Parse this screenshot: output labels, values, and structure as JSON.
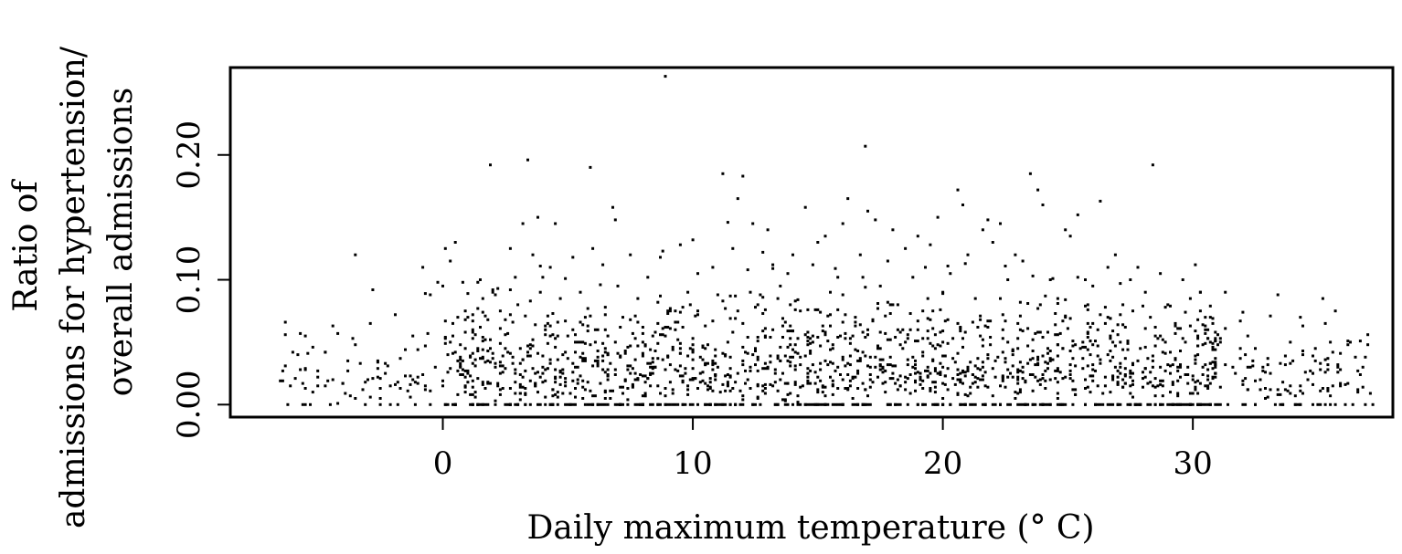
{
  "chart_data": {
    "type": "scatter",
    "title": "",
    "xlabel": "Daily maximum temperature (° C)",
    "ylabel_lines": [
      "Ratio of",
      "admissions for hypertension/",
      "overall admissions"
    ],
    "xlim": [
      -8.5,
      38
    ],
    "ylim": [
      -0.01,
      0.27
    ],
    "x_ticks": [
      0,
      10,
      20,
      30
    ],
    "x_tick_labels": [
      "0",
      "10",
      "20",
      "30"
    ],
    "y_ticks": [
      0.0,
      0.1,
      0.2
    ],
    "y_tick_labels": [
      "0.00",
      "0.10",
      "0.20"
    ],
    "grid": false,
    "legend": "none",
    "point_color": "#000000",
    "series": [
      {
        "points": [
          [
            -6.5,
            0.019
          ],
          [
            -5.5,
            0.028
          ],
          [
            -5.5,
            0.0
          ],
          [
            -5.0,
            0.027
          ],
          [
            -4.5,
            0.0
          ],
          [
            -4.0,
            0.017
          ],
          [
            -3.8,
            0.027
          ],
          [
            -3.5,
            0.12
          ],
          [
            -3.2,
            0.012
          ],
          [
            -2.8,
            0.092
          ],
          [
            -2.6,
            0.035
          ],
          [
            -2.5,
            0.005
          ],
          [
            -2.3,
            0.033
          ],
          [
            -2.1,
            0.0
          ],
          [
            -1.9,
            0.072
          ],
          [
            -1.8,
            0.018
          ],
          [
            -1.5,
            0.044
          ],
          [
            -1.3,
            0.006
          ],
          [
            -1.2,
            0.055
          ],
          [
            -1.0,
            0.022
          ],
          [
            -0.8,
            0.11
          ],
          [
            -0.7,
            0.012
          ],
          [
            -0.5,
            0.088
          ],
          [
            -0.3,
            0.03
          ],
          [
            -0.2,
            0.098
          ],
          [
            0.0,
            0.015
          ],
          [
            0.1,
            0.125
          ],
          [
            0.2,
            0.04
          ],
          [
            0.3,
            0.115
          ],
          [
            0.4,
            0.065
          ],
          [
            0.5,
            0.13
          ],
          [
            0.6,
            0.008
          ],
          [
            0.7,
            0.048
          ],
          [
            0.8,
            0.098
          ],
          [
            0.9,
            0.075
          ],
          [
            1.0,
            0.025
          ],
          [
            1.2,
            0.058
          ],
          [
            1.5,
            0.1
          ],
          [
            1.8,
            0.035
          ],
          [
            1.9,
            0.192
          ],
          [
            2.0,
            0.09
          ],
          [
            2.2,
            0.015
          ],
          [
            2.5,
            0.068
          ],
          [
            2.7,
            0.125
          ],
          [
            2.9,
            0.102
          ],
          [
            3.0,
            0.08
          ],
          [
            3.1,
            0.045
          ],
          [
            3.2,
            0.145
          ],
          [
            3.4,
            0.196
          ],
          [
            3.6,
            0.12
          ],
          [
            3.8,
            0.15
          ],
          [
            4.0,
            0.03
          ],
          [
            4.2,
            0.065
          ],
          [
            4.3,
            0.11
          ],
          [
            4.5,
            0.145
          ],
          [
            4.7,
            0.085
          ],
          [
            5.0,
            0.055
          ],
          [
            5.2,
            0.118
          ],
          [
            5.4,
            0.02
          ],
          [
            5.5,
            0.09
          ],
          [
            5.8,
            0.077
          ],
          [
            5.9,
            0.19
          ],
          [
            6.0,
            0.125
          ],
          [
            6.2,
            0.06
          ],
          [
            6.4,
            0.112
          ],
          [
            6.6,
            0.04
          ],
          [
            6.8,
            0.158
          ],
          [
            6.9,
            0.148
          ],
          [
            7.0,
            0.095
          ],
          [
            7.2,
            0.07
          ],
          [
            7.5,
            0.12
          ],
          [
            7.8,
            0.085
          ],
          [
            8.0,
            0.05
          ],
          [
            8.2,
            0.102
          ],
          [
            8.5,
            0.03
          ],
          [
            8.7,
            0.118
          ],
          [
            8.9,
            0.263
          ],
          [
            9.0,
            0.075
          ],
          [
            9.3,
            0.06
          ],
          [
            9.5,
            0.128
          ],
          [
            9.8,
            0.09
          ],
          [
            10.0,
            0.132
          ],
          [
            10.2,
            0.105
          ],
          [
            10.5,
            0.045
          ],
          [
            10.8,
            0.11
          ],
          [
            11.0,
            0.088
          ],
          [
            11.2,
            0.185
          ],
          [
            11.4,
            0.146
          ],
          [
            11.6,
            0.125
          ],
          [
            11.8,
            0.165
          ],
          [
            12.0,
            0.183
          ],
          [
            12.2,
            0.108
          ],
          [
            12.4,
            0.145
          ],
          [
            12.6,
            0.08
          ],
          [
            12.8,
            0.122
          ],
          [
            13.0,
            0.14
          ],
          [
            13.2,
            0.06
          ],
          [
            13.5,
            0.095
          ],
          [
            13.8,
            0.105
          ],
          [
            14.0,
            0.12
          ],
          [
            14.3,
            0.075
          ],
          [
            14.5,
            0.158
          ],
          [
            14.8,
            0.112
          ],
          [
            15.0,
            0.13
          ],
          [
            15.3,
            0.135
          ],
          [
            15.5,
            0.09
          ],
          [
            15.8,
            0.102
          ],
          [
            16.0,
            0.145
          ],
          [
            16.2,
            0.165
          ],
          [
            16.5,
            0.07
          ],
          [
            16.7,
            0.12
          ],
          [
            16.9,
            0.207
          ],
          [
            17.0,
            0.155
          ],
          [
            17.3,
            0.148
          ],
          [
            17.5,
            0.095
          ],
          [
            17.8,
            0.115
          ],
          [
            18.0,
            0.14
          ],
          [
            18.2,
            0.08
          ],
          [
            18.5,
            0.125
          ],
          [
            18.8,
            0.102
          ],
          [
            19.0,
            0.135
          ],
          [
            19.3,
            0.11
          ],
          [
            19.5,
            0.128
          ],
          [
            19.8,
            0.15
          ],
          [
            20.0,
            0.09
          ],
          [
            20.3,
            0.105
          ],
          [
            20.6,
            0.172
          ],
          [
            20.8,
            0.16
          ],
          [
            21.0,
            0.12
          ],
          [
            21.3,
            0.085
          ],
          [
            21.6,
            0.14
          ],
          [
            21.8,
            0.148
          ],
          [
            22.0,
            0.13
          ],
          [
            22.3,
            0.145
          ],
          [
            22.6,
            0.1
          ],
          [
            22.9,
            0.12
          ],
          [
            23.2,
            0.115
          ],
          [
            23.5,
            0.185
          ],
          [
            23.8,
            0.172
          ],
          [
            24.0,
            0.16
          ],
          [
            24.3,
            0.1
          ],
          [
            24.6,
            0.085
          ],
          [
            24.9,
            0.14
          ],
          [
            25.1,
            0.135
          ],
          [
            25.4,
            0.152
          ],
          [
            25.7,
            0.1
          ],
          [
            26.0,
            0.095
          ],
          [
            26.3,
            0.163
          ],
          [
            26.6,
            0.11
          ],
          [
            26.9,
            0.12
          ],
          [
            27.2,
            0.08
          ],
          [
            27.5,
            0.1
          ],
          [
            27.8,
            0.11
          ],
          [
            28.1,
            0.09
          ],
          [
            28.4,
            0.192
          ],
          [
            28.7,
            0.105
          ],
          [
            29.0,
            0.08
          ],
          [
            29.3,
            0.065
          ],
          [
            29.6,
            0.1
          ],
          [
            29.9,
            0.085
          ],
          [
            30.2,
            0.04
          ],
          [
            30.5,
            0.06
          ],
          [
            30.8,
            0.065
          ],
          [
            31.1,
            0.05
          ],
          [
            31.3,
            0.09
          ],
          [
            31.6,
            0.03
          ],
          [
            31.9,
            0.045
          ],
          [
            32.2,
            0.055
          ],
          [
            32.5,
            0.045
          ],
          [
            32.8,
            0.03
          ],
          [
            33.1,
            0.025
          ],
          [
            33.4,
            0.088
          ],
          [
            33.7,
            0.012
          ],
          [
            34.0,
            0.035
          ],
          [
            34.3,
            0.07
          ],
          [
            34.6,
            0.02
          ],
          [
            34.9,
            0.045
          ],
          [
            35.2,
            0.085
          ],
          [
            35.4,
            0.028
          ],
          [
            35.6,
            0.042
          ],
          [
            35.9,
            0.015
          ],
          [
            36.2,
            0.048
          ],
          [
            36.5,
            0.038
          ],
          [
            36.8,
            0.03
          ],
          [
            36.9,
            0.0
          ],
          [
            35.0,
            0.0
          ],
          [
            33.5,
            0.0
          ],
          [
            32.0,
            0.0
          ],
          [
            31.0,
            0.0
          ],
          [
            29.5,
            0.0
          ],
          [
            28.5,
            0.0
          ],
          [
            27.5,
            0.0
          ]
        ],
        "generated_point_count": 1800
      }
    ]
  }
}
